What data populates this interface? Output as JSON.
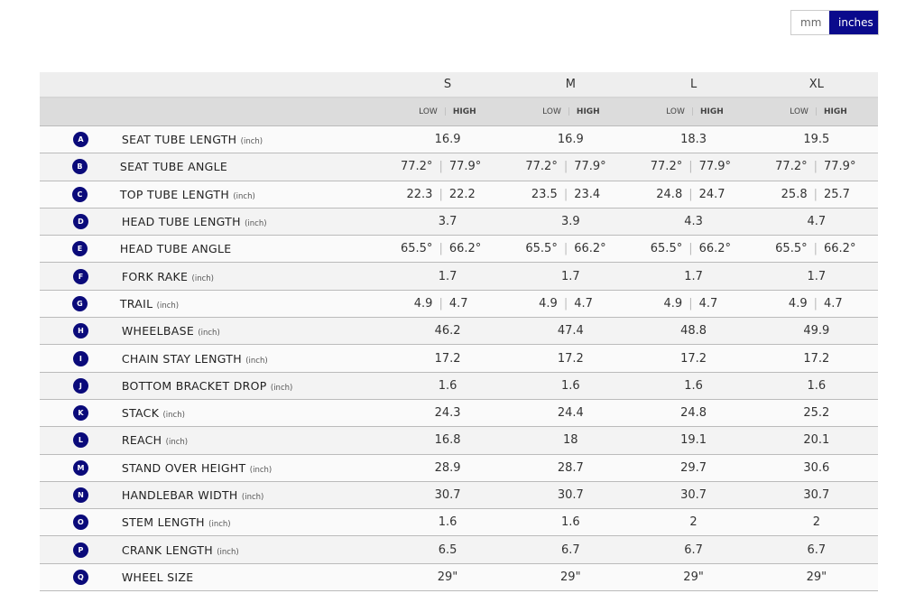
{
  "units_toggle": {
    "options": [
      "mm",
      "inches"
    ],
    "selected": "inches",
    "accent": "#0a0a8c"
  },
  "sizes": [
    "S",
    "M",
    "L",
    "XL"
  ],
  "subheader": {
    "low": "LOW",
    "high": "HIGH"
  },
  "rows": [
    {
      "key": "A",
      "label": "SEAT TUBE LENGTH",
      "unit": "(inch)",
      "values": [
        [
          "16.9"
        ],
        [
          "16.9"
        ],
        [
          "18.3"
        ],
        [
          "19.5"
        ]
      ]
    },
    {
      "key": "B",
      "label": "SEAT TUBE ANGLE",
      "unit": "",
      "values": [
        [
          "77.2°",
          "77.9°"
        ],
        [
          "77.2°",
          "77.9°"
        ],
        [
          "77.2°",
          "77.9°"
        ],
        [
          "77.2°",
          "77.9°"
        ]
      ]
    },
    {
      "key": "C",
      "label": "TOP TUBE LENGTH",
      "unit": "(inch)",
      "values": [
        [
          "22.3",
          "22.2"
        ],
        [
          "23.5",
          "23.4"
        ],
        [
          "24.8",
          "24.7"
        ],
        [
          "25.8",
          "25.7"
        ]
      ]
    },
    {
      "key": "D",
      "label": "HEAD TUBE LENGTH",
      "unit": "(inch)",
      "values": [
        [
          "3.7"
        ],
        [
          "3.9"
        ],
        [
          "4.3"
        ],
        [
          "4.7"
        ]
      ]
    },
    {
      "key": "E",
      "label": "HEAD TUBE ANGLE",
      "unit": "",
      "values": [
        [
          "65.5°",
          "66.2°"
        ],
        [
          "65.5°",
          "66.2°"
        ],
        [
          "65.5°",
          "66.2°"
        ],
        [
          "65.5°",
          "66.2°"
        ]
      ]
    },
    {
      "key": "F",
      "label": "FORK RAKE",
      "unit": "(inch)",
      "values": [
        [
          "1.7"
        ],
        [
          "1.7"
        ],
        [
          "1.7"
        ],
        [
          "1.7"
        ]
      ]
    },
    {
      "key": "G",
      "label": "TRAIL",
      "unit": "(inch)",
      "values": [
        [
          "4.9",
          "4.7"
        ],
        [
          "4.9",
          "4.7"
        ],
        [
          "4.9",
          "4.7"
        ],
        [
          "4.9",
          "4.7"
        ]
      ]
    },
    {
      "key": "H",
      "label": "WHEELBASE",
      "unit": "(inch)",
      "values": [
        [
          "46.2"
        ],
        [
          "47.4"
        ],
        [
          "48.8"
        ],
        [
          "49.9"
        ]
      ]
    },
    {
      "key": "I",
      "label": "CHAIN STAY LENGTH",
      "unit": "(inch)",
      "values": [
        [
          "17.2"
        ],
        [
          "17.2"
        ],
        [
          "17.2"
        ],
        [
          "17.2"
        ]
      ]
    },
    {
      "key": "J",
      "label": "BOTTOM BRACKET DROP",
      "unit": "(inch)",
      "values": [
        [
          "1.6"
        ],
        [
          "1.6"
        ],
        [
          "1.6"
        ],
        [
          "1.6"
        ]
      ]
    },
    {
      "key": "K",
      "label": "STACK",
      "unit": "(inch)",
      "values": [
        [
          "24.3"
        ],
        [
          "24.4"
        ],
        [
          "24.8"
        ],
        [
          "25.2"
        ]
      ]
    },
    {
      "key": "L",
      "label": "REACH",
      "unit": "(inch)",
      "values": [
        [
          "16.8"
        ],
        [
          "18"
        ],
        [
          "19.1"
        ],
        [
          "20.1"
        ]
      ]
    },
    {
      "key": "M",
      "label": "STAND OVER HEIGHT",
      "unit": "(inch)",
      "values": [
        [
          "28.9"
        ],
        [
          "28.7"
        ],
        [
          "29.7"
        ],
        [
          "30.6"
        ]
      ]
    },
    {
      "key": "N",
      "label": "HANDLEBAR WIDTH",
      "unit": "(inch)",
      "values": [
        [
          "30.7"
        ],
        [
          "30.7"
        ],
        [
          "30.7"
        ],
        [
          "30.7"
        ]
      ]
    },
    {
      "key": "O",
      "label": "STEM LENGTH",
      "unit": "(inch)",
      "values": [
        [
          "1.6"
        ],
        [
          "1.6"
        ],
        [
          "2"
        ],
        [
          "2"
        ]
      ]
    },
    {
      "key": "P",
      "label": "CRANK LENGTH",
      "unit": "(inch)",
      "values": [
        [
          "6.5"
        ],
        [
          "6.7"
        ],
        [
          "6.7"
        ],
        [
          "6.7"
        ]
      ]
    },
    {
      "key": "Q",
      "label": "WHEEL SIZE",
      "unit": "",
      "values": [
        [
          "29\""
        ],
        [
          "29\""
        ],
        [
          "29\""
        ],
        [
          "29\""
        ]
      ]
    }
  ]
}
